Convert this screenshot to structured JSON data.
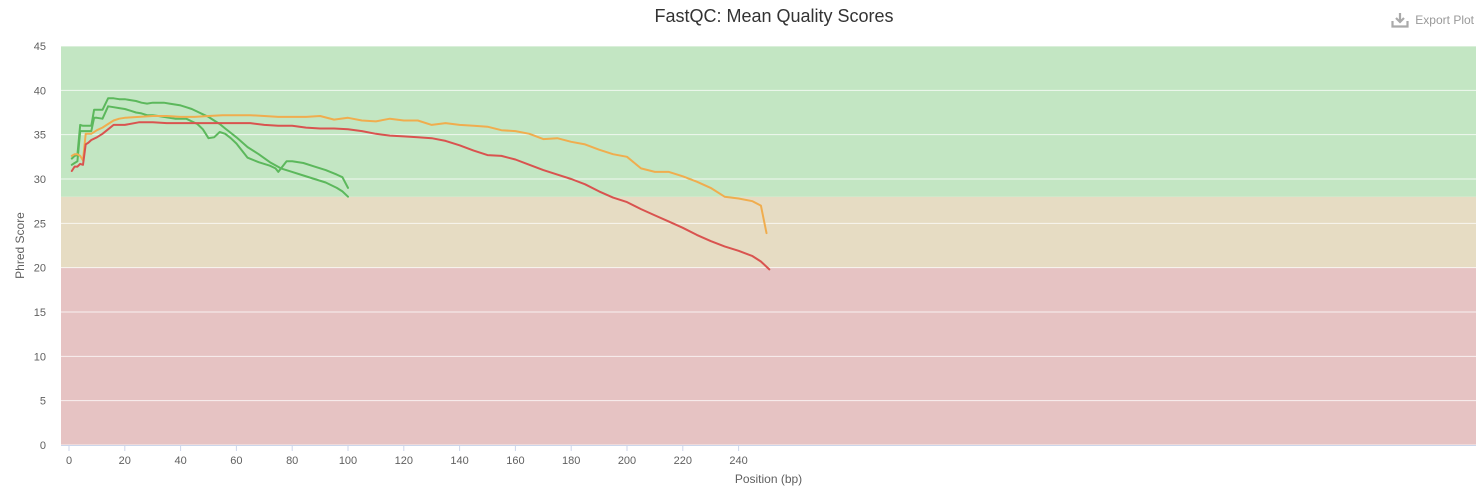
{
  "export_label": "Export Plot",
  "colors": {
    "pass": "#5cb85c",
    "warn": "#f0ad4e",
    "fail": "#d9534f",
    "band_pass": "#c3e6c3",
    "band_warn": "#e6dcc3",
    "band_fail": "#e6c3c3"
  },
  "chart_data": {
    "type": "line",
    "title": "FastQC: Mean Quality Scores",
    "xlabel": "Position (bp)",
    "ylabel": "Phred Score",
    "xlim": [
      0,
      252
    ],
    "ylim": [
      0,
      45
    ],
    "xticks": [
      0,
      20,
      40,
      60,
      80,
      100,
      120,
      140,
      160,
      180,
      200,
      220,
      240
    ],
    "yticks": [
      0,
      5,
      10,
      15,
      20,
      25,
      30,
      35,
      40,
      45
    ],
    "grid": true,
    "bands": [
      {
        "from": 0,
        "to": 20,
        "status": "fail"
      },
      {
        "from": 20,
        "to": 28,
        "status": "warn"
      },
      {
        "from": 28,
        "to": 45,
        "status": "pass"
      }
    ],
    "series": [
      {
        "status": "pass",
        "color": "#5cb85c",
        "x": [
          1,
          2,
          3,
          4,
          5,
          6,
          7,
          8,
          9,
          10,
          12,
          14,
          16,
          18,
          20,
          22,
          24,
          26,
          28,
          30,
          32,
          34,
          36,
          38,
          40,
          42,
          44,
          46,
          48,
          50,
          52,
          54,
          56,
          58,
          60,
          64,
          68,
          72,
          76,
          80,
          84,
          88,
          92,
          96,
          98,
          100
        ],
        "y": [
          32.3,
          32.6,
          32.7,
          36.1,
          36.0,
          36.0,
          36.0,
          36.0,
          37.8,
          37.8,
          37.8,
          39.1,
          39.1,
          39.0,
          39.0,
          38.9,
          38.8,
          38.6,
          38.5,
          38.6,
          38.6,
          38.6,
          38.5,
          38.4,
          38.3,
          38.1,
          37.9,
          37.6,
          37.3,
          37.0,
          36.6,
          36.2,
          35.7,
          35.2,
          34.7,
          33.6,
          32.8,
          31.9,
          31.2,
          30.8,
          30.4,
          30.0,
          29.6,
          29.0,
          28.6,
          28.0
        ]
      },
      {
        "status": "pass",
        "color": "#5cb85c",
        "x": [
          1,
          2,
          3,
          4,
          5,
          6,
          7,
          8,
          9,
          10,
          12,
          14,
          16,
          18,
          20,
          22,
          24,
          26,
          28,
          30,
          32,
          34,
          36,
          38,
          40,
          42,
          44,
          46,
          48,
          50,
          52,
          54,
          56,
          58,
          60,
          62,
          64,
          68,
          72,
          74,
          75,
          76,
          78,
          80,
          84,
          88,
          92,
          96,
          98,
          100
        ],
        "y": [
          31.6,
          31.8,
          32.0,
          35.4,
          35.4,
          35.4,
          35.4,
          35.4,
          36.9,
          36.9,
          36.8,
          38.2,
          38.1,
          38.0,
          37.9,
          37.7,
          37.5,
          37.4,
          37.2,
          37.2,
          37.1,
          37.0,
          36.9,
          36.8,
          36.8,
          36.8,
          36.5,
          36.2,
          35.6,
          34.6,
          34.7,
          35.3,
          35.1,
          34.6,
          34.0,
          33.2,
          32.4,
          31.9,
          31.5,
          31.2,
          30.8,
          31.2,
          32.0,
          32.0,
          31.8,
          31.4,
          31.0,
          30.5,
          30.2,
          29.0
        ]
      },
      {
        "status": "warn",
        "color": "#f0ad4e",
        "x": [
          1,
          2,
          3,
          4,
          5,
          6,
          7,
          8,
          10,
          12,
          14,
          16,
          18,
          20,
          25,
          30,
          35,
          40,
          45,
          50,
          55,
          60,
          65,
          70,
          75,
          80,
          85,
          90,
          95,
          100,
          105,
          110,
          115,
          120,
          125,
          130,
          135,
          140,
          145,
          150,
          155,
          160,
          165,
          170,
          175,
          180,
          185,
          190,
          195,
          200,
          205,
          210,
          215,
          220,
          225,
          230,
          235,
          240,
          245,
          248,
          250
        ],
        "y": [
          32.6,
          32.8,
          32.8,
          32.6,
          32.1,
          35.1,
          35.1,
          35.1,
          35.5,
          35.8,
          36.2,
          36.6,
          36.8,
          36.9,
          37.0,
          37.1,
          37.1,
          37.0,
          37.0,
          37.1,
          37.2,
          37.2,
          37.2,
          37.1,
          37.0,
          37.0,
          37.0,
          37.1,
          36.7,
          36.9,
          36.6,
          36.5,
          36.8,
          36.6,
          36.6,
          36.1,
          36.3,
          36.1,
          36.0,
          35.9,
          35.5,
          35.4,
          35.1,
          34.5,
          34.6,
          34.2,
          33.9,
          33.3,
          32.8,
          32.5,
          31.2,
          30.8,
          30.8,
          30.3,
          29.7,
          29.0,
          28.0,
          27.8,
          27.5,
          27.0,
          23.9
        ]
      },
      {
        "status": "fail",
        "color": "#d9534f",
        "x": [
          1,
          2,
          3,
          4,
          5,
          6,
          7,
          8,
          10,
          12,
          14,
          16,
          18,
          20,
          25,
          30,
          35,
          40,
          45,
          50,
          55,
          60,
          65,
          70,
          75,
          80,
          85,
          90,
          95,
          100,
          105,
          110,
          115,
          120,
          125,
          130,
          135,
          140,
          145,
          150,
          155,
          160,
          165,
          170,
          175,
          180,
          185,
          190,
          195,
          200,
          205,
          210,
          215,
          220,
          225,
          230,
          235,
          240,
          245,
          248,
          251
        ],
        "y": [
          30.9,
          31.4,
          31.4,
          31.7,
          31.6,
          33.9,
          34.1,
          34.4,
          34.7,
          35.1,
          35.6,
          36.1,
          36.1,
          36.1,
          36.4,
          36.4,
          36.3,
          36.3,
          36.3,
          36.3,
          36.3,
          36.3,
          36.3,
          36.1,
          36.0,
          36.0,
          35.8,
          35.7,
          35.7,
          35.6,
          35.4,
          35.1,
          34.9,
          34.8,
          34.7,
          34.6,
          34.3,
          33.8,
          33.2,
          32.7,
          32.6,
          32.2,
          31.6,
          31.0,
          30.5,
          30.0,
          29.4,
          28.6,
          27.9,
          27.4,
          26.6,
          25.9,
          25.2,
          24.5,
          23.7,
          23.0,
          22.4,
          21.9,
          21.3,
          20.7,
          19.8
        ]
      }
    ]
  }
}
